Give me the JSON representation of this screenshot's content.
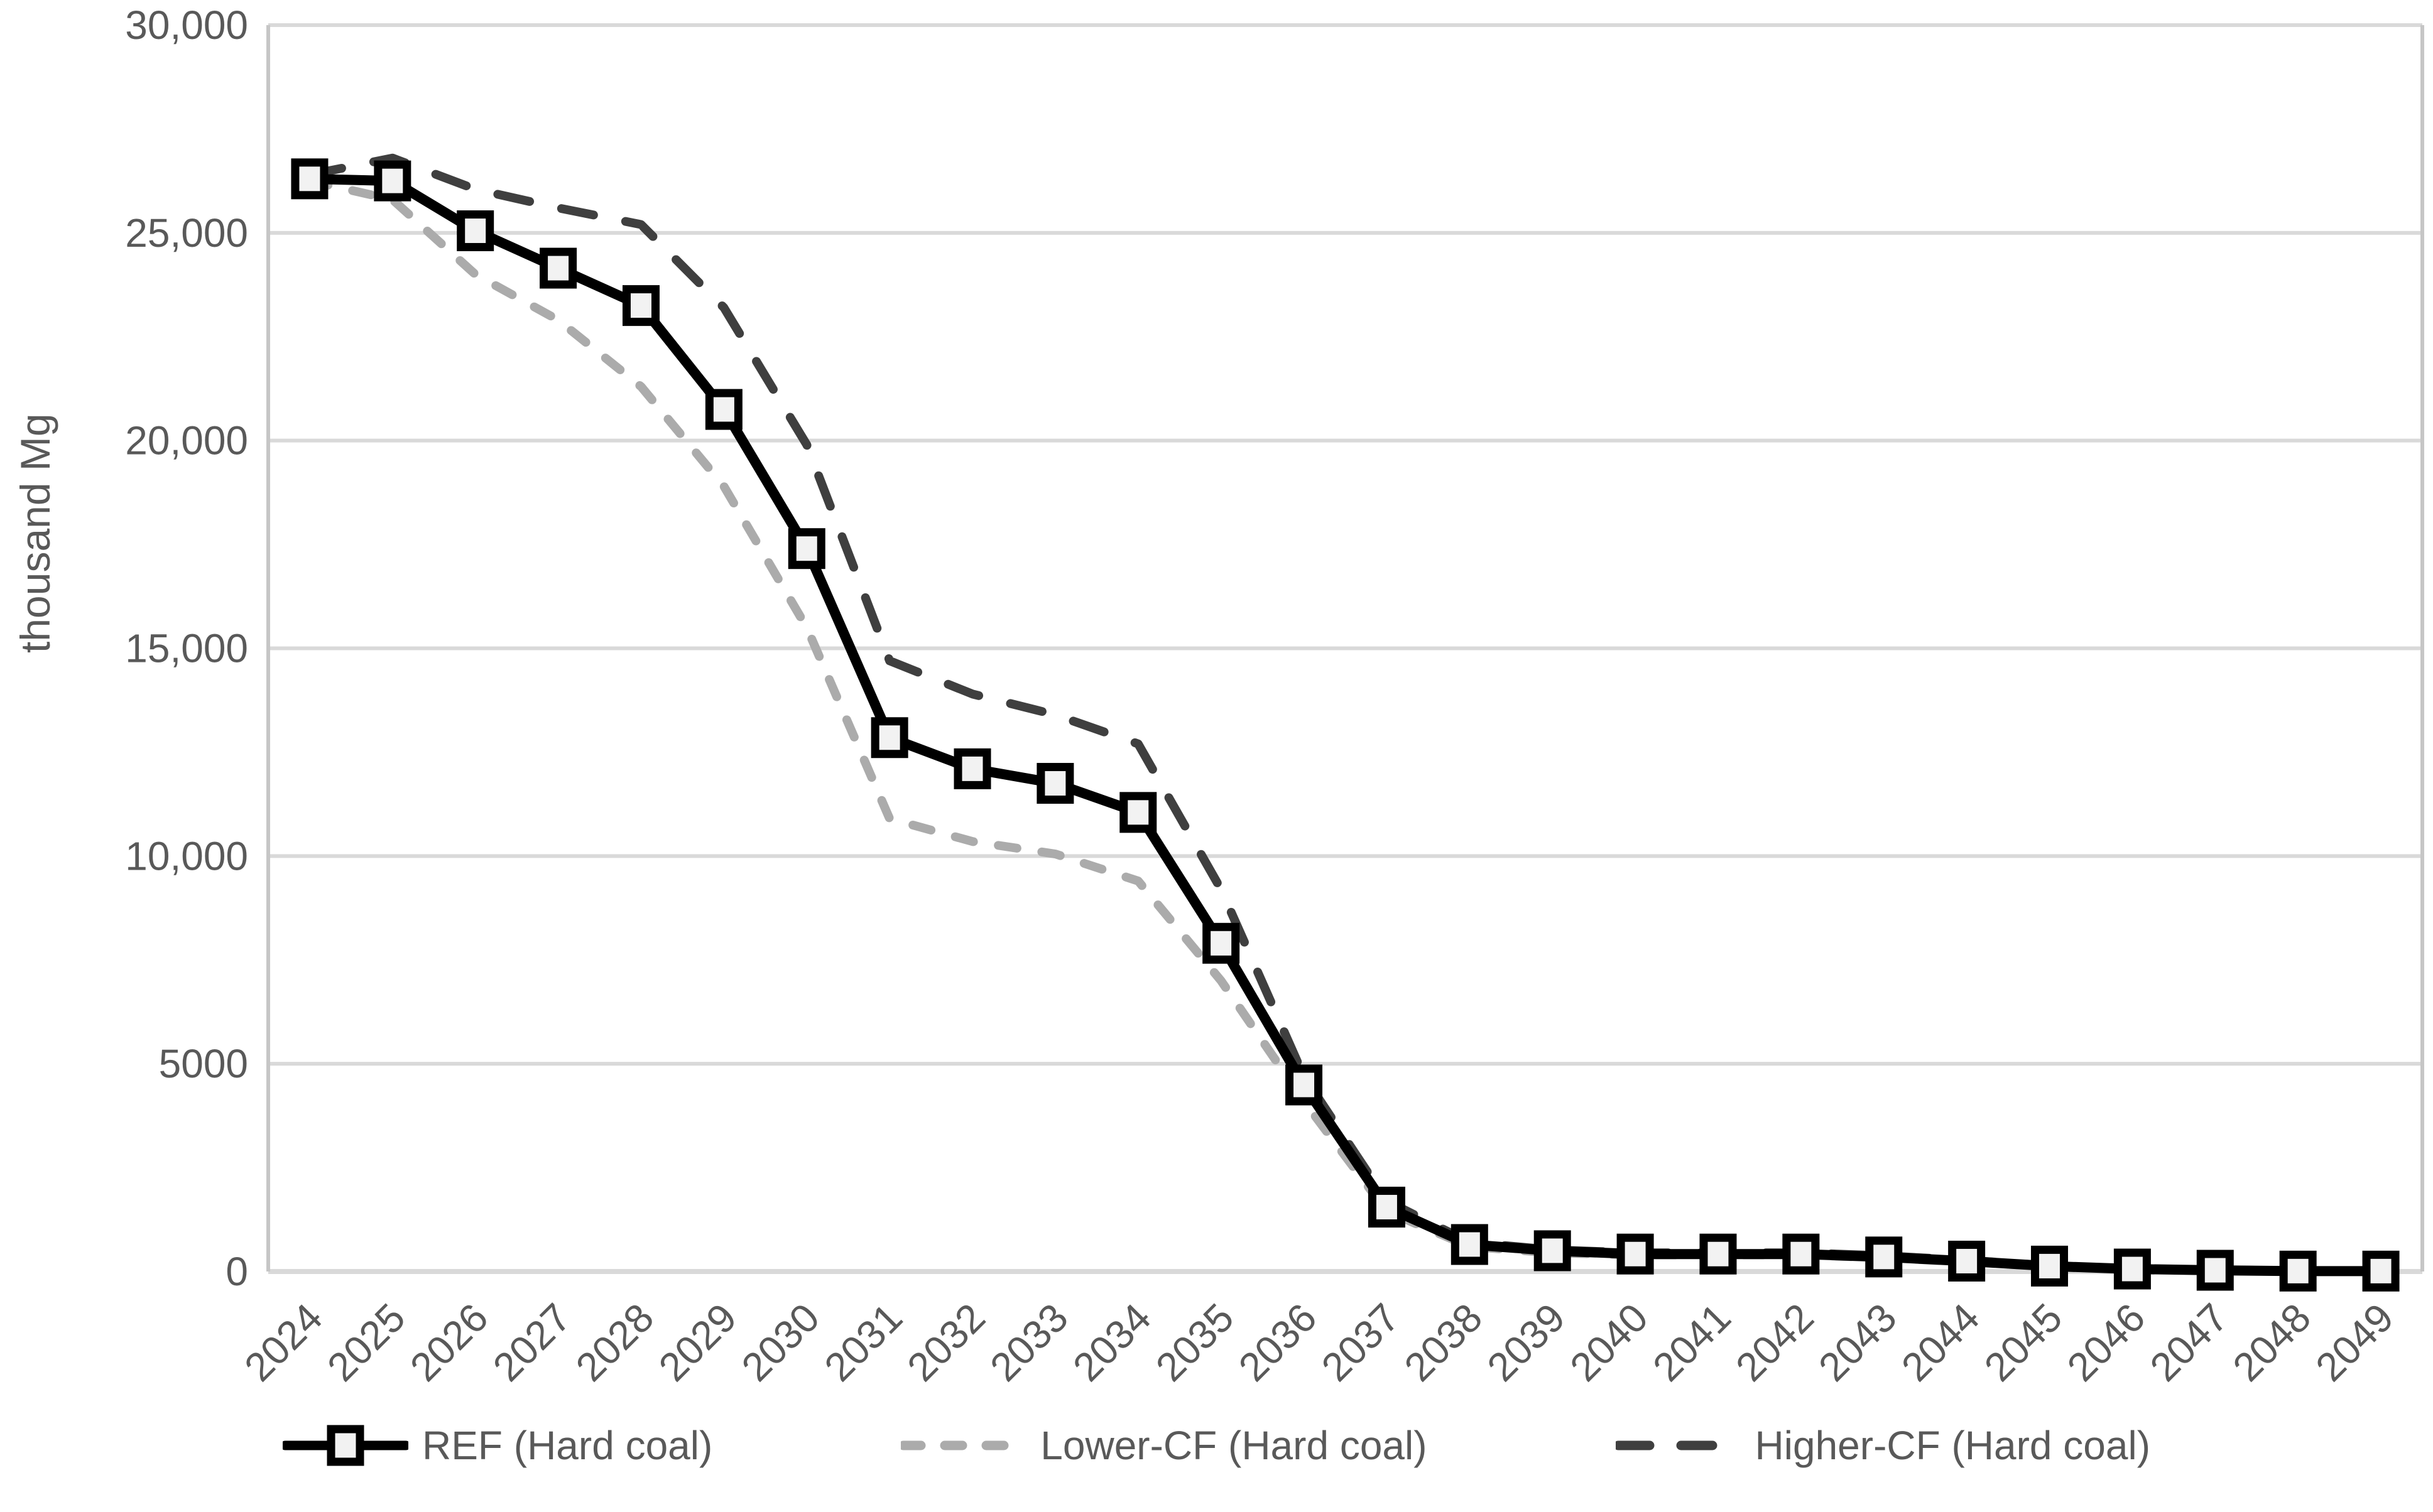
{
  "chart_data": {
    "type": "line",
    "title": "",
    "xlabel": "",
    "ylabel": "thousand Mg",
    "ylim": [
      0,
      30000
    ],
    "grid": true,
    "legend_position": "bottom",
    "colors": {
      "gridline": "#d9d9d9",
      "axis_frame": "#c6c6c6",
      "tick_text": "#595959",
      "marker_fill": "#f2f2f2"
    },
    "yticks": [
      {
        "value": 30000,
        "label": "30,000"
      },
      {
        "value": 25000,
        "label": "25,000"
      },
      {
        "value": 20000,
        "label": "20,000"
      },
      {
        "value": 15000,
        "label": "15,000"
      },
      {
        "value": 10000,
        "label": "10,000"
      },
      {
        "value": 5000,
        "label": "5000"
      },
      {
        "value": 0,
        "label": "0"
      }
    ],
    "categories": [
      "2024",
      "2025",
      "2026",
      "2027",
      "2028",
      "2029",
      "2030",
      "2031",
      "2032",
      "2033",
      "2034",
      "2035",
      "2036",
      "2037",
      "2038",
      "2039",
      "2040",
      "2041",
      "2042",
      "2043",
      "2044",
      "2045",
      "2046",
      "2047",
      "2048",
      "2049"
    ],
    "series": [
      {
        "name": "Lower-CF (Hard coal)",
        "color": "#ababab",
        "line_style": "dashed-short",
        "marker": "none",
        "values": [
          26250,
          25800,
          24000,
          22900,
          21300,
          18900,
          15500,
          10900,
          10350,
          10050,
          9400,
          7000,
          4100,
          1450,
          600,
          450,
          400,
          400,
          400,
          330,
          230,
          120,
          50,
          20,
          10,
          0
        ]
      },
      {
        "name": "Higher-CF (Hard coal)",
        "color": "#3f3f3f",
        "line_style": "dashed-long",
        "marker": "none",
        "values": [
          26400,
          26800,
          26050,
          25600,
          25200,
          23200,
          19900,
          14700,
          13900,
          13400,
          12700,
          9200,
          4700,
          1700,
          700,
          520,
          450,
          450,
          450,
          380,
          270,
          140,
          70,
          40,
          20,
          10
        ]
      },
      {
        "name": "REF (Hard coal)",
        "color": "#000000",
        "line_style": "solid",
        "marker": "square",
        "values": [
          26300,
          26250,
          25050,
          24150,
          23250,
          20750,
          17400,
          12850,
          12100,
          11750,
          11050,
          7900,
          4490,
          1550,
          650,
          500,
          420,
          420,
          420,
          350,
          250,
          130,
          60,
          30,
          10,
          10
        ]
      }
    ]
  },
  "legend": {
    "items": [
      {
        "id": "ref",
        "label": "REF (Hard coal)"
      },
      {
        "id": "lower",
        "label": "Lower-CF (Hard coal)"
      },
      {
        "id": "higher",
        "label": "Higher-CF (Hard coal)"
      }
    ]
  }
}
